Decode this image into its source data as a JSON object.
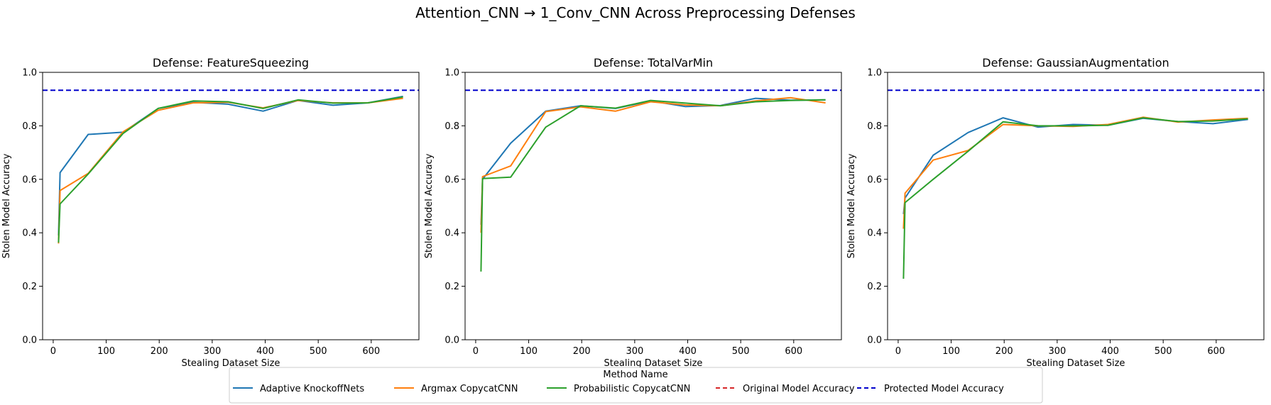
{
  "suptitle": "Attention_CNN → 1_Conv_CNN Across Preprocessing Defenses",
  "legend": {
    "title": "Method Name",
    "placement": "bottom-center",
    "entries": [
      {
        "label": "Adaptive KnockoffNets",
        "color": "#1f77b4",
        "style": "solid"
      },
      {
        "label": "Argmax CopycatCNN",
        "color": "#ff7f0e",
        "style": "solid"
      },
      {
        "label": "Probabilistic CopycatCNN",
        "color": "#2ca02c",
        "style": "solid"
      },
      {
        "label": "Original Model Accuracy",
        "color": "#d62728",
        "style": "dashed"
      },
      {
        "label": "Protected Model Accuracy",
        "color": "#0000cc",
        "style": "dashed"
      }
    ]
  },
  "chart_data": [
    {
      "type": "line",
      "title": "Defense: FeatureSqueezing",
      "xlabel": "Stealing Dataset Size",
      "ylabel": "Stolen Model Accuracy",
      "xlim": [
        -20,
        690
      ],
      "ylim": [
        0,
        1.0
      ],
      "xticks": [
        0,
        100,
        200,
        300,
        400,
        500,
        600
      ],
      "yticks": [
        0.0,
        0.2,
        0.4,
        0.6,
        0.8,
        1.0
      ],
      "grid": false,
      "x": [
        10,
        13,
        66,
        132,
        198,
        264,
        330,
        396,
        462,
        528,
        594,
        660
      ],
      "series": [
        {
          "name": "Adaptive KnockoffNets",
          "color": "#1f77b4",
          "values": [
            0.39,
            0.625,
            0.768,
            0.776,
            0.865,
            0.888,
            0.881,
            0.855,
            0.895,
            0.877,
            0.886,
            0.91
          ]
        },
        {
          "name": "Argmax CopycatCNN",
          "color": "#ff7f0e",
          "values": [
            0.36,
            0.558,
            0.622,
            0.778,
            0.858,
            0.886,
            0.888,
            0.867,
            0.895,
            0.886,
            0.886,
            0.903
          ]
        },
        {
          "name": "Probabilistic CopycatCNN",
          "color": "#2ca02c",
          "values": [
            0.363,
            0.508,
            0.62,
            0.772,
            0.865,
            0.893,
            0.89,
            0.865,
            0.897,
            0.885,
            0.886,
            0.908
          ]
        }
      ],
      "reference_lines": [
        {
          "name": "Protected Model Accuracy",
          "y": 0.933,
          "color": "#0000cc",
          "style": "dashed"
        }
      ]
    },
    {
      "type": "line",
      "title": "Defense: TotalVarMin",
      "xlabel": "Stealing Dataset Size",
      "ylabel": "Stolen Model Accuracy",
      "xlim": [
        -20,
        690
      ],
      "ylim": [
        0,
        1.0
      ],
      "xticks": [
        0,
        100,
        200,
        300,
        400,
        500,
        600
      ],
      "yticks": [
        0.0,
        0.2,
        0.4,
        0.6,
        0.8,
        1.0
      ],
      "grid": false,
      "x": [
        10,
        13,
        66,
        132,
        198,
        264,
        330,
        396,
        462,
        528,
        594,
        660
      ],
      "series": [
        {
          "name": "Adaptive KnockoffNets",
          "color": "#1f77b4",
          "values": [
            0.43,
            0.6,
            0.735,
            0.855,
            0.875,
            0.865,
            0.893,
            0.872,
            0.876,
            0.903,
            0.896,
            0.897
          ]
        },
        {
          "name": "Argmax CopycatCNN",
          "color": "#ff7f0e",
          "values": [
            0.4,
            0.61,
            0.65,
            0.853,
            0.871,
            0.855,
            0.89,
            0.878,
            0.875,
            0.893,
            0.905,
            0.886
          ]
        },
        {
          "name": "Probabilistic CopycatCNN",
          "color": "#2ca02c",
          "values": [
            0.255,
            0.603,
            0.608,
            0.795,
            0.875,
            0.866,
            0.895,
            0.885,
            0.875,
            0.89,
            0.895,
            0.897
          ]
        }
      ],
      "reference_lines": [
        {
          "name": "Protected Model Accuracy",
          "y": 0.933,
          "color": "#0000cc",
          "style": "dashed"
        }
      ]
    },
    {
      "type": "line",
      "title": "Defense: GaussianAugmentation",
      "xlabel": "Stealing Dataset Size",
      "ylabel": "Stolen Model Accuracy",
      "xlim": [
        -20,
        690
      ],
      "ylim": [
        0,
        1.0
      ],
      "xticks": [
        0,
        100,
        200,
        300,
        400,
        500,
        600
      ],
      "yticks": [
        0.0,
        0.2,
        0.4,
        0.6,
        0.8,
        1.0
      ],
      "grid": false,
      "x": [
        10,
        13,
        66,
        132,
        198,
        264,
        330,
        396,
        462,
        528,
        594,
        660
      ],
      "series": [
        {
          "name": "Adaptive KnockoffNets",
          "color": "#1f77b4",
          "values": [
            0.47,
            0.53,
            0.69,
            0.775,
            0.83,
            0.795,
            0.805,
            0.802,
            0.828,
            0.816,
            0.808,
            0.824
          ]
        },
        {
          "name": "Argmax CopycatCNN",
          "color": "#ff7f0e",
          "values": [
            0.415,
            0.548,
            0.672,
            0.708,
            0.805,
            0.8,
            0.798,
            0.805,
            0.832,
            0.814,
            0.822,
            0.828
          ]
        },
        {
          "name": "Probabilistic CopycatCNN",
          "color": "#2ca02c",
          "values": [
            0.228,
            0.513,
            0.6,
            0.705,
            0.815,
            0.8,
            0.8,
            0.802,
            0.83,
            0.816,
            0.818,
            0.826
          ]
        }
      ],
      "reference_lines": [
        {
          "name": "Protected Model Accuracy",
          "y": 0.933,
          "color": "#0000cc",
          "style": "dashed"
        }
      ]
    }
  ]
}
